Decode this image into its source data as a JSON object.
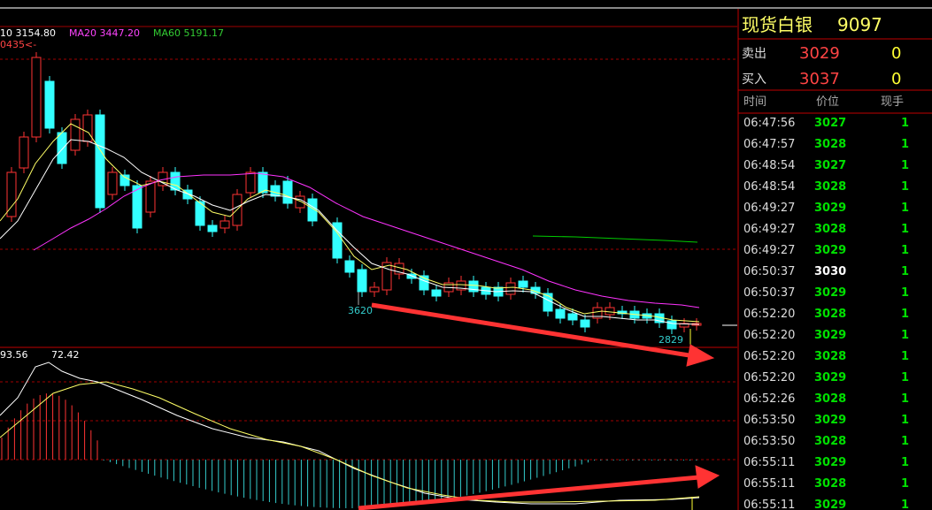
{
  "chart": {
    "ma10": "10 3154.80",
    "ma20": "MA20 3447.20",
    "ma60": "MA60 5191.17",
    "marker": "0435<-",
    "low_label": "3620",
    "last_label": "2829",
    "macd_a": "93.56",
    "macd_b": "72.42"
  },
  "quote": {
    "name": "现货白银",
    "code": "9097",
    "sell_label": "卖出",
    "sell_price": "3029",
    "sell_vol": "0",
    "buy_label": "买入",
    "buy_price": "3037",
    "buy_vol": "0"
  },
  "trades": {
    "headers": [
      "时间",
      "价位",
      "现手"
    ],
    "rows": [
      {
        "time": "06:47:56",
        "price": "3027",
        "vol": "1",
        "color": "#00e000"
      },
      {
        "time": "06:47:57",
        "price": "3028",
        "vol": "1",
        "color": "#00e000"
      },
      {
        "time": "06:48:54",
        "price": "3027",
        "vol": "1",
        "color": "#00e000"
      },
      {
        "time": "06:48:54",
        "price": "3028",
        "vol": "1",
        "color": "#00e000"
      },
      {
        "time": "06:49:27",
        "price": "3029",
        "vol": "1",
        "color": "#00e000"
      },
      {
        "time": "06:49:27",
        "price": "3028",
        "vol": "1",
        "color": "#00e000"
      },
      {
        "time": "06:49:27",
        "price": "3029",
        "vol": "1",
        "color": "#00e000"
      },
      {
        "time": "06:50:37",
        "price": "3030",
        "vol": "1",
        "color": "#ffffff"
      },
      {
        "time": "06:50:37",
        "price": "3029",
        "vol": "1",
        "color": "#00e000"
      },
      {
        "time": "06:52:20",
        "price": "3028",
        "vol": "1",
        "color": "#00e000"
      },
      {
        "time": "06:52:20",
        "price": "3029",
        "vol": "1",
        "color": "#00e000"
      },
      {
        "time": "06:52:20",
        "price": "3028",
        "vol": "1",
        "color": "#00e000"
      },
      {
        "time": "06:52:20",
        "price": "3029",
        "vol": "1",
        "color": "#00e000"
      },
      {
        "time": "06:52:26",
        "price": "3028",
        "vol": "1",
        "color": "#00e000"
      },
      {
        "time": "06:53:50",
        "price": "3029",
        "vol": "1",
        "color": "#00e000"
      },
      {
        "time": "06:53:50",
        "price": "3028",
        "vol": "1",
        "color": "#00e000"
      },
      {
        "time": "06:55:11",
        "price": "3029",
        "vol": "1",
        "color": "#00e000"
      },
      {
        "time": "06:55:11",
        "price": "3028",
        "vol": "1",
        "color": "#00e000"
      },
      {
        "time": "06:55:11",
        "price": "3029",
        "vol": "1",
        "color": "#00e000"
      }
    ]
  }
}
